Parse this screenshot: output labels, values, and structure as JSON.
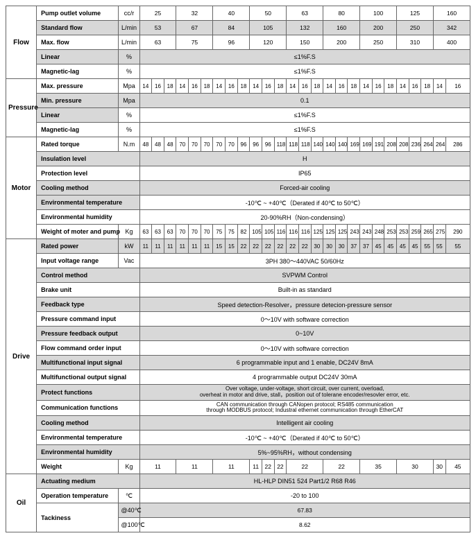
{
  "sections": {
    "flow": {
      "label": "Flow",
      "rows": [
        {
          "name": "Pump outlet volume",
          "unit": "cc/r",
          "cells": [
            "25",
            "32",
            "40",
            "50",
            "63",
            "80",
            "100",
            "125",
            "160"
          ],
          "shaded": false,
          "split": 1
        },
        {
          "name": "Standard flow",
          "unit": "L/min",
          "cells": [
            "53",
            "67",
            "84",
            "105",
            "132",
            "160",
            "200",
            "250",
            "342"
          ],
          "shaded": true,
          "split": 1
        },
        {
          "name": "Max. flow",
          "unit": "L/min",
          "cells": [
            "63",
            "75",
            "96",
            "120",
            "150",
            "200",
            "250",
            "310",
            "400"
          ],
          "shaded": false,
          "split": 1
        },
        {
          "name": "Linear",
          "unit": "%",
          "full": "≤1%F.S",
          "shaded": true
        },
        {
          "name": "Magnetic-lag",
          "unit": "%",
          "full": "≤1%F.S",
          "shaded": false
        }
      ]
    },
    "pressure": {
      "label": "Pressure",
      "rows": [
        {
          "name": "Max. pressure",
          "unit": "Mpa",
          "cells": [
            "14",
            "16",
            "18",
            "14",
            "16",
            "18",
            "14",
            "16",
            "18",
            "14",
            "16",
            "18",
            "14",
            "16",
            "18",
            "14",
            "16",
            "18",
            "14",
            "16",
            "18",
            "14",
            "16",
            "18",
            "14",
            "16"
          ],
          "shaded": false,
          "split": 3,
          "lastsplit": 2
        },
        {
          "name": "Min. pressure",
          "unit": "Mpa",
          "full": "0.1",
          "shaded": true
        },
        {
          "name": "Linear",
          "unit": "%",
          "full": "≤1%F.S",
          "shaded": false,
          "nameShaded": true
        },
        {
          "name": "Magnetic-lag",
          "unit": "%",
          "full": "≤1%F.S",
          "shaded": false
        }
      ]
    },
    "motor": {
      "label": "Motor",
      "rows": [
        {
          "name": "Rated torque",
          "unit": "N.m",
          "cells": [
            "48",
            "48",
            "48",
            "70",
            "70",
            "70",
            "70",
            "70",
            "96",
            "96",
            "96",
            "118",
            "118",
            "118",
            "140",
            "140",
            "140",
            "169",
            "169",
            "191",
            "208",
            "208",
            "236",
            "264",
            "264",
            "286"
          ],
          "shaded": false,
          "split": 3,
          "lastsplit": 2
        },
        {
          "name": "Insulation level",
          "unit": "",
          "full": "H",
          "shaded": true
        },
        {
          "name": "Protection level",
          "unit": "",
          "full": "IP65",
          "shaded": false
        },
        {
          "name": "Cooling method",
          "unit": "",
          "full": "Forced-air cooling",
          "shaded": true
        },
        {
          "name": "Environmental temperature",
          "unit": "",
          "full": "-10℃ ~ +40℃（Derated if 40℃ to 50℃）",
          "shaded": false,
          "nameShaded": true
        },
        {
          "name": "Environmental humidity",
          "unit": "",
          "full": "20-90%RH（Non-condensing）",
          "shaded": false
        },
        {
          "name": "Weight of moter and pump",
          "unit": "Kg",
          "cells": [
            "63",
            "63",
            "63",
            "70",
            "70",
            "70",
            "75",
            "75",
            "82",
            "105",
            "105",
            "116",
            "116",
            "116",
            "125",
            "125",
            "125",
            "243",
            "243",
            "248",
            "253",
            "253",
            "259",
            "265",
            "275",
            "290"
          ],
          "shaded": false,
          "split": 3,
          "lastsplit": 2
        }
      ]
    },
    "drive": {
      "label": "Drive",
      "rows": [
        {
          "name": "Rated power",
          "unit": "kW",
          "cells": [
            "11",
            "11",
            "11",
            "11",
            "11",
            "11",
            "15",
            "15",
            "22",
            "22",
            "22",
            "22",
            "22",
            "22",
            "30",
            "30",
            "30",
            "37",
            "37",
            "45",
            "45",
            "45",
            "45",
            "55",
            "55",
            "55"
          ],
          "shaded": true,
          "split": 3,
          "lastsplit": 2
        },
        {
          "name": "Input voltage range",
          "unit": "Vac",
          "full": "3PH 380～440VAC 50/60Hz",
          "shaded": false
        },
        {
          "name": "Control method",
          "unit": "",
          "full": "SVPWM Control",
          "shaded": true
        },
        {
          "name": "Brake unit",
          "unit": "",
          "full": "Built-in as standard",
          "shaded": false
        },
        {
          "name": "Feedback type",
          "unit": "",
          "full": "Speed detection-Resolver，pressure detecion-pressure sensor",
          "shaded": true
        },
        {
          "name": "Pressure command input",
          "unit": "",
          "full": "0～10V with software correction",
          "shaded": false
        },
        {
          "name": "Pressure feedback output",
          "unit": "",
          "full": "0~10V",
          "shaded": true
        },
        {
          "name": "Flow command order input",
          "unit": "",
          "full": "0～10V with software correction",
          "shaded": false
        },
        {
          "name": "Multifunctional input signal",
          "unit": "",
          "full": "6 programmable input and 1 enable, DC24V 8mA",
          "shaded": true
        },
        {
          "name": "Multifunctional output signal",
          "unit": "",
          "full": "4 programmable output DC24V 30mA",
          "shaded": false
        },
        {
          "name": "Protect functions",
          "unit": "",
          "full2": [
            "Over voltage, under-voltage, short circuit, over current, overload,",
            "overheat in motor and drive, stall，position out of tolerane encoder/resovler error, etc."
          ],
          "shaded": true
        },
        {
          "name": "Communication functions",
          "unit": "",
          "full2": [
            "CAN communication through CANopen protocol; RS485 communication",
            "through MODBUS protocol; Industral ethernet communication through EtherCAT"
          ],
          "shaded": false
        },
        {
          "name": "Cooling method",
          "unit": "",
          "full": "Intelligent air cooling",
          "shaded": true
        },
        {
          "name": "Environmental temperature",
          "unit": "",
          "full": "-10℃ ~ +40℃（Derated if 40℃ to 50℃）",
          "shaded": false
        },
        {
          "name": "Environmental humidity",
          "unit": "",
          "full": "5%~95%RH，without condensing",
          "shaded": true
        },
        {
          "name": "Weight",
          "unit": "Kg",
          "cells": [
            "11",
            "11",
            "11",
            "11",
            "22",
            "22",
            "22",
            "22",
            "35",
            "30",
            "30",
            "45"
          ],
          "shaded": false,
          "weightRow": true
        }
      ]
    },
    "oil": {
      "label": "Oil",
      "rows": [
        {
          "name": "Actuating medium",
          "unit": "",
          "full": "HL-HLP DIN51 524 Part1/2 R68 R46",
          "shaded": true
        },
        {
          "name": "Operation temperature",
          "unit": "℃",
          "full": "-20 to 100",
          "shaded": false
        },
        {
          "name": "Tackiness",
          "unit": "",
          "tackiness": true
        }
      ]
    }
  },
  "tackiness": {
    "r1": {
      "label": "@40℃",
      "value": "67.83"
    },
    "r2": {
      "label": "@100℃",
      "value": "8.62"
    }
  }
}
